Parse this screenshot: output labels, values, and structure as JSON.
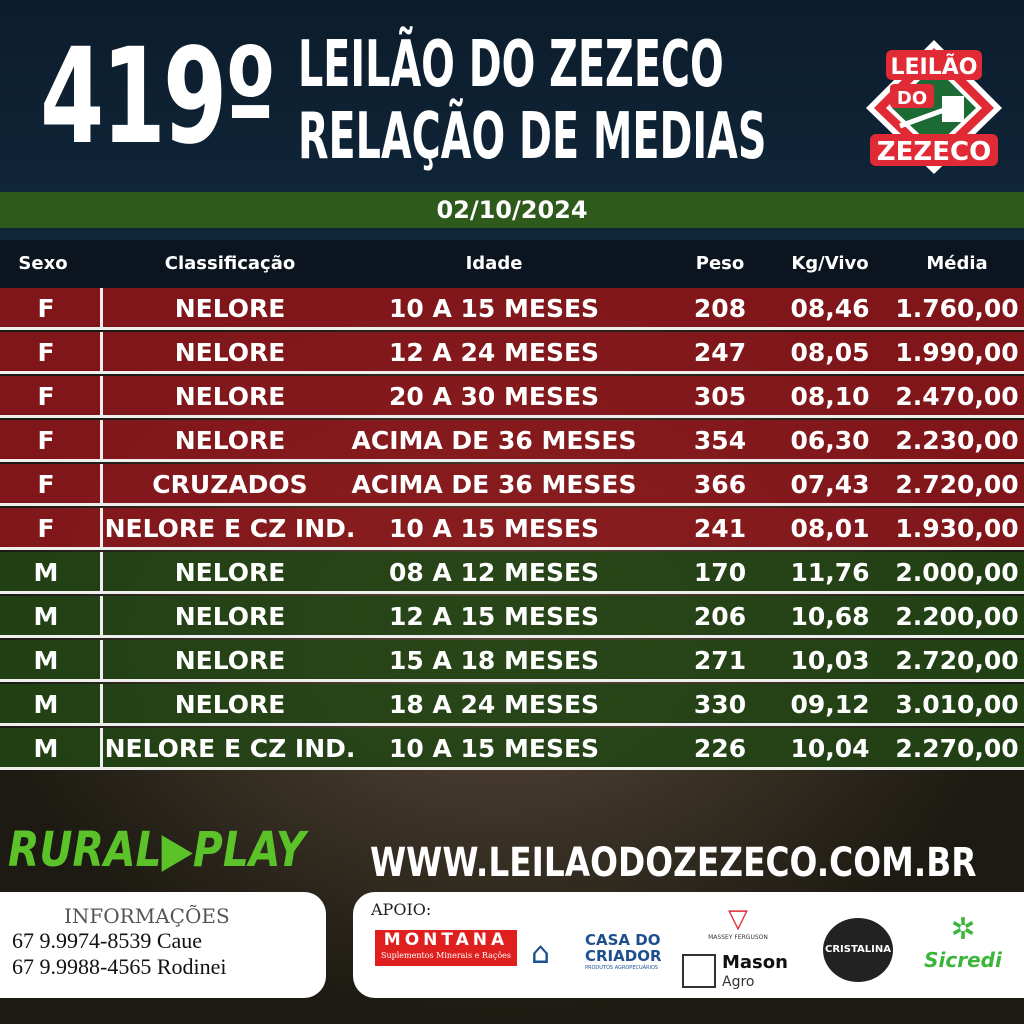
{
  "header": {
    "number": "419º",
    "title_line1": "LEILÃO DO ZEZECO",
    "title_line2": "RELAÇÃO DE MEDIAS",
    "date": "02/10/2024",
    "logo": {
      "line1": "LEILÃO",
      "line2": "DO",
      "line3": "ZEZECO"
    }
  },
  "table": {
    "columns": [
      "Sexo",
      "Classificação",
      "Idade",
      "Peso",
      "Kg/Vivo",
      "Média"
    ],
    "rows": [
      [
        "F",
        "NELORE",
        "10 A 15 MESES",
        "208",
        "08,46",
        "1.760,00"
      ],
      [
        "F",
        "NELORE",
        "12 A 24 MESES",
        "247",
        "08,05",
        "1.990,00"
      ],
      [
        "F",
        "NELORE",
        "20 A 30 MESES",
        "305",
        "08,10",
        "2.470,00"
      ],
      [
        "F",
        "NELORE",
        "ACIMA DE 36 MESES",
        "354",
        "06,30",
        "2.230,00"
      ],
      [
        "F",
        "CRUZADOS",
        "ACIMA DE 36 MESES",
        "366",
        "07,43",
        "2.720,00"
      ],
      [
        "F",
        "NELORE E CZ IND.",
        "10 A 15 MESES",
        "241",
        "08,01",
        "1.930,00"
      ],
      [
        "M",
        "NELORE",
        "08 A 12 MESES",
        "170",
        "11,76",
        "2.000,00"
      ],
      [
        "M",
        "NELORE",
        "12 A 15 MESES",
        "206",
        "10,68",
        "2.200,00"
      ],
      [
        "M",
        "NELORE",
        "15 A 18 MESES",
        "271",
        "10,03",
        "2.720,00"
      ],
      [
        "M",
        "NELORE",
        "18 A 24 MESES",
        "330",
        "09,12",
        "3.010,00"
      ],
      [
        "M",
        "NELORE E CZ IND.",
        "10 A 15 MESES",
        "226",
        "10,04",
        "2.270,00"
      ]
    ]
  },
  "footer": {
    "brand": "RURAL▶PLAY",
    "website": "WWW.LEILAODOZEZECO.COM.BR",
    "info": {
      "heading": "INFORMAÇÕES",
      "phones": [
        "67 9.9974-8539 Caue",
        "67 9.9988-4565 Rodinei"
      ]
    },
    "apoio": {
      "label": "APOIO:",
      "sponsors": {
        "montana": "MONTANA",
        "montana_sub": "Suplementos Minerais e Rações",
        "casa1": "CASA DO",
        "casa2": "CRIADOR",
        "casa_sub": "PRODUTOS AGROPECUÁRIOS",
        "mf": "MASSEY FERGUSON",
        "mason": "Mason",
        "agro": "Agro",
        "cristalina": "CRISTALINA",
        "sicredi": "Sicredi"
      }
    }
  },
  "colors": {
    "female_row": "#96161c",
    "male_row": "#224614",
    "header_bg": "#0f2538",
    "green_bar": "#2e5a1c",
    "brand_green": "#5cc22a"
  }
}
